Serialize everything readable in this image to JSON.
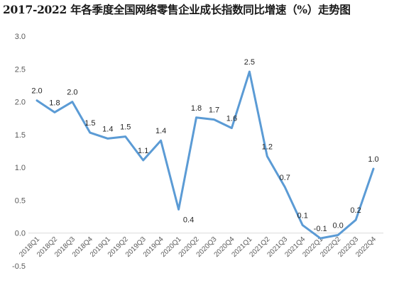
{
  "chart_data": {
    "type": "line",
    "title": "2017-2022 年各季度全国网络零售企业成长指数同比增速（%）走势图",
    "xlabel": "",
    "ylabel": "",
    "categories": [
      "2018Q1",
      "2018Q2",
      "2018Q3",
      "2018Q4",
      "2019Q1",
      "2019Q2",
      "2019Q3",
      "2019Q4",
      "2020Q1",
      "2020Q2",
      "2020Q3",
      "2020Q4",
      "2021Q1",
      "2021Q2",
      "2021Q3",
      "2021Q4",
      "2022Q1",
      "2022Q2",
      "2022Q3",
      "2022Q4"
    ],
    "series": [
      {
        "values": [
          2.02,
          1.84,
          2.0,
          1.53,
          1.44,
          1.47,
          1.11,
          1.41,
          0.36,
          1.76,
          1.73,
          1.6,
          2.46,
          1.17,
          0.7,
          0.12,
          -0.08,
          -0.03,
          0.2,
          0.98
        ],
        "labels": [
          "2.0",
          "1.8",
          "2.0",
          "1.5",
          "1.4",
          "1.5",
          "1.1",
          "1.4",
          "0.4",
          "1.8",
          "1.7",
          "1.6",
          "2.5",
          "1.2",
          "0.7",
          "0.1",
          "-0.1",
          "0.0",
          "0.2",
          "1.0"
        ],
        "color": "#5b9bd5"
      }
    ],
    "ylim": [
      -0.5,
      3.0
    ],
    "yticks": [
      "-0.5",
      "0.0",
      "0.5",
      "1.0",
      "1.5",
      "2.0",
      "2.5",
      "3.0"
    ],
    "grid": false,
    "legend": "none"
  }
}
